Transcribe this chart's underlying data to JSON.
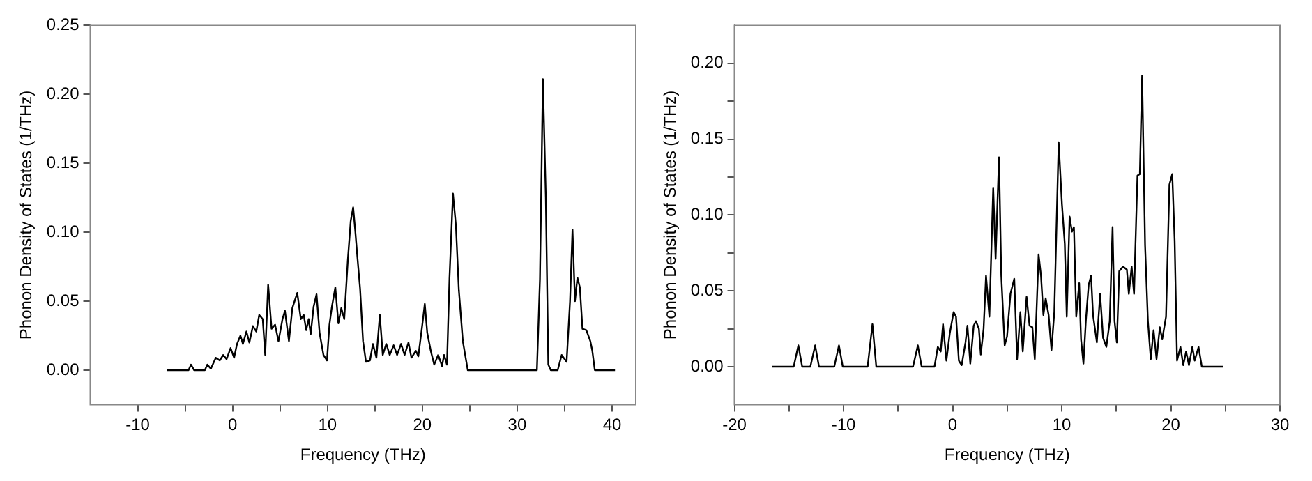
{
  "chart_data": [
    {
      "type": "line",
      "xlabel": "Frequency (THz)",
      "ylabel": "Phonon Density of States (1/THz)",
      "xlim": [
        -15,
        42.5
      ],
      "ylim": [
        -0.025,
        0.25
      ],
      "xticks": [
        -10,
        {
          "value": -5,
          "label": null
        },
        0,
        {
          "value": 5,
          "label": null
        },
        10,
        {
          "value": 15,
          "label": null
        },
        20,
        {
          "value": 25,
          "label": null
        },
        30,
        {
          "value": 35,
          "label": null
        },
        40
      ],
      "yticks": [
        {
          "value": 0,
          "label": "0.00"
        },
        0.05,
        {
          "value": 0.1,
          "label": "0.10"
        },
        0.15,
        {
          "value": 0.2,
          "label": "0.20"
        },
        0.25
      ],
      "grid": false,
      "legend": false,
      "marker": "none",
      "line_style": "solid",
      "series": [
        {
          "color": "#000000",
          "x": [
            -6.88,
            -4.64,
            -4.38,
            -4.06,
            -2.92,
            -2.66,
            -2.29,
            -1.77,
            -1.35,
            -0.99,
            -0.63,
            -0.21,
            0.16,
            0.47,
            0.83,
            1.09,
            1.46,
            1.77,
            2.14,
            2.5,
            2.81,
            3.18,
            3.44,
            3.75,
            4.11,
            4.48,
            4.84,
            5.26,
            5.52,
            5.94,
            6.3,
            6.82,
            7.19,
            7.5,
            7.76,
            8.02,
            8.23,
            8.54,
            8.85,
            9.17,
            9.58,
            9.95,
            10.21,
            10.47,
            10.83,
            11.15,
            11.46,
            11.77,
            12.14,
            12.45,
            12.71,
            12.92,
            13.13,
            13.44,
            13.75,
            14.06,
            14.48,
            14.79,
            15.16,
            15.52,
            15.83,
            16.2,
            16.56,
            16.98,
            17.34,
            17.76,
            18.13,
            18.54,
            18.85,
            19.32,
            19.58,
            20,
            20.26,
            20.52,
            20.89,
            21.25,
            21.67,
            22.08,
            22.29,
            22.6,
            22.86,
            23.23,
            23.54,
            23.85,
            24.27,
            24.79,
            32.08,
            32.4,
            32.71,
            33.02,
            33.28,
            33.54,
            34.27,
            34.69,
            35.21,
            35.57,
            35.83,
            36.09,
            36.35,
            36.61,
            36.88,
            37.29,
            37.71,
            37.92,
            38.18,
            40.31
          ],
          "values": [
            0,
            0,
            0.004,
            0,
            0,
            0.004,
            0.001,
            0.009,
            0.007,
            0.011,
            0.008,
            0.016,
            0.009,
            0.019,
            0.025,
            0.019,
            0.028,
            0.02,
            0.032,
            0.028,
            0.04,
            0.037,
            0.011,
            0.062,
            0.03,
            0.033,
            0.021,
            0.037,
            0.043,
            0.021,
            0.045,
            0.056,
            0.037,
            0.04,
            0.029,
            0.037,
            0.026,
            0.046,
            0.055,
            0.027,
            0.011,
            0.007,
            0.033,
            0.046,
            0.06,
            0.034,
            0.045,
            0.037,
            0.079,
            0.108,
            0.118,
            0.102,
            0.084,
            0.059,
            0.021,
            0.006,
            0.007,
            0.019,
            0.009,
            0.04,
            0.011,
            0.019,
            0.011,
            0.018,
            0.011,
            0.019,
            0.011,
            0.02,
            0.009,
            0.014,
            0.01,
            0.033,
            0.048,
            0.027,
            0.014,
            0.004,
            0.011,
            0.003,
            0.011,
            0.004,
            0.066,
            0.128,
            0.105,
            0.058,
            0.021,
            0,
            0,
            0.066,
            0.211,
            0.125,
            0.004,
            0,
            0,
            0.011,
            0.006,
            0.05,
            0.102,
            0.05,
            0.067,
            0.06,
            0.03,
            0.029,
            0.021,
            0.014,
            0,
            0
          ]
        }
      ]
    },
    {
      "type": "line",
      "xlabel": "Frequency (THz)",
      "ylabel": "Phonon Density of States (1/THz)",
      "xlim": [
        -20,
        30
      ],
      "ylim": [
        -0.025,
        0.225
      ],
      "xticks": [
        -20,
        {
          "value": -15,
          "label": null
        },
        -10,
        {
          "value": -5,
          "label": null
        },
        0,
        {
          "value": 5,
          "label": null
        },
        10,
        {
          "value": 15,
          "label": null
        },
        20,
        {
          "value": 25,
          "label": null
        },
        30
      ],
      "yticks": [
        {
          "value": 0,
          "label": "0.00"
        },
        {
          "value": 0.025,
          "label": null
        },
        0.05,
        {
          "value": 0.075,
          "label": null
        },
        {
          "value": 0.1,
          "label": "0.10"
        },
        {
          "value": 0.125,
          "label": null
        },
        0.15,
        {
          "value": 0.175,
          "label": null
        },
        {
          "value": 0.2,
          "label": "0.20"
        }
      ],
      "grid": false,
      "legend": false,
      "marker": "none",
      "line_style": "solid",
      "series": [
        {
          "color": "#000000",
          "x": [
            -16.54,
            -14.57,
            -14.14,
            -13.79,
            -13.04,
            -12.6,
            -12.25,
            -10.85,
            -10.42,
            -10.07,
            -7.79,
            -7.35,
            -7,
            -3.63,
            -3.19,
            -2.84,
            -1.66,
            -1.36,
            -1.09,
            -0.88,
            -0.57,
            -0.26,
            0.09,
            0.31,
            0.57,
            0.83,
            1.18,
            1.36,
            1.62,
            1.93,
            2.14,
            2.41,
            2.58,
            2.84,
            3.06,
            3.37,
            3.72,
            3.94,
            4.25,
            4.46,
            4.77,
            4.99,
            5.3,
            5.65,
            5.91,
            6.21,
            6.43,
            6.78,
            7.05,
            7.31,
            7.53,
            7.88,
            8.1,
            8.32,
            8.53,
            8.8,
            9.06,
            9.32,
            9.72,
            10.02,
            10.28,
            10.46,
            10.72,
            10.94,
            11.12,
            11.33,
            11.6,
            11.77,
            11.99,
            12.21,
            12.47,
            12.69,
            12.87,
            13.22,
            13.52,
            13.79,
            14.09,
            14.4,
            14.66,
            14.84,
            15.05,
            15.27,
            15.62,
            15.97,
            16.15,
            16.41,
            16.63,
            16.94,
            17.16,
            17.37,
            17.64,
            17.9,
            18.16,
            18.42,
            18.69,
            18.99,
            19.21,
            19.56,
            19.87,
            20.13,
            20.35,
            20.57,
            20.88,
            21.14,
            21.4,
            21.66,
            21.97,
            22.19,
            22.54,
            22.84,
            24.81
          ],
          "values": [
            0,
            0,
            0.014,
            0,
            0,
            0.014,
            0,
            0,
            0.014,
            0,
            0,
            0.028,
            0,
            0,
            0.014,
            0,
            0,
            0.013,
            0.01,
            0.028,
            0.004,
            0.022,
            0.036,
            0.033,
            0.004,
            0.001,
            0.016,
            0.027,
            0.002,
            0.027,
            0.03,
            0.025,
            0.008,
            0.025,
            0.06,
            0.033,
            0.118,
            0.071,
            0.138,
            0.06,
            0.014,
            0.02,
            0.048,
            0.058,
            0.005,
            0.036,
            0.01,
            0.046,
            0.027,
            0.026,
            0.005,
            0.074,
            0.06,
            0.034,
            0.045,
            0.034,
            0.011,
            0.036,
            0.148,
            0.107,
            0.081,
            0.033,
            0.099,
            0.089,
            0.092,
            0.033,
            0.055,
            0.018,
            0.002,
            0.03,
            0.054,
            0.06,
            0.034,
            0.016,
            0.048,
            0.019,
            0.013,
            0.03,
            0.092,
            0.03,
            0.016,
            0.063,
            0.066,
            0.064,
            0.048,
            0.066,
            0.048,
            0.126,
            0.127,
            0.192,
            0.08,
            0.03,
            0.005,
            0.024,
            0.005,
            0.026,
            0.018,
            0.033,
            0.12,
            0.127,
            0.083,
            0.004,
            0.013,
            0.001,
            0.01,
            0.001,
            0.013,
            0.004,
            0.013,
            0,
            0
          ]
        }
      ]
    }
  ]
}
